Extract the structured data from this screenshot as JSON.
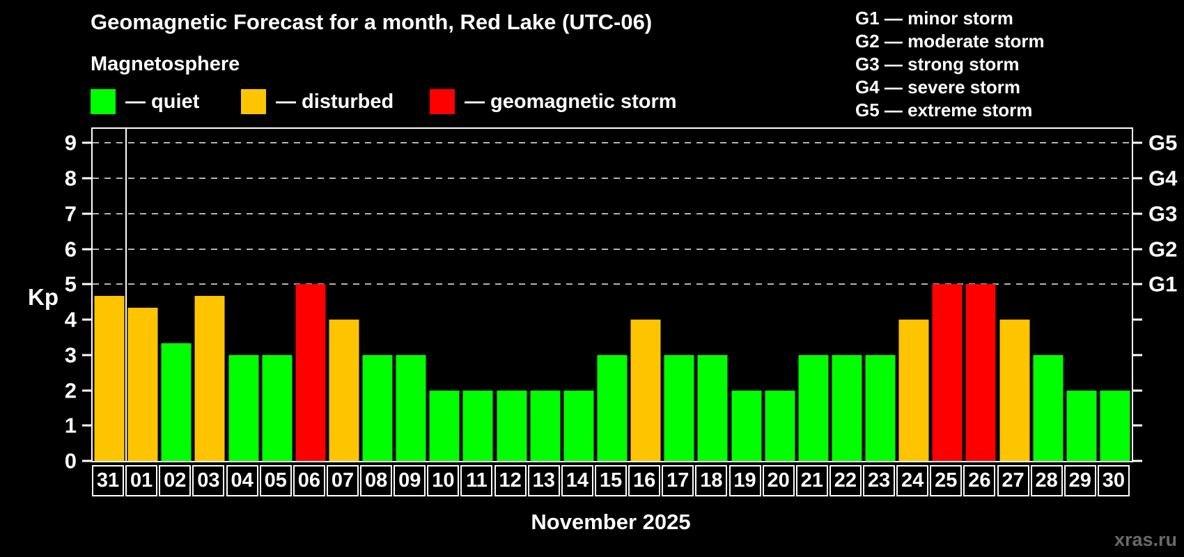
{
  "title": "Geomagnetic Forecast for a month, Red Lake (UTC-06)",
  "subtitle": "Magnetosphere",
  "legend": {
    "items": [
      {
        "key": "quiet",
        "label": "— quiet",
        "color": "#00ff00"
      },
      {
        "key": "disturbed",
        "label": "— disturbed",
        "color": "#ffc400"
      },
      {
        "key": "storm",
        "label": "— geomagnetic storm",
        "color": "#ff0000"
      }
    ]
  },
  "g_legend": [
    "G1 — minor storm",
    "G2 — moderate storm",
    "G3 — strong storm",
    "G4 — severe storm",
    "G5 — extreme storm"
  ],
  "watermark": "xras.ru",
  "chart_data": {
    "type": "bar",
    "title": "Geomagnetic Forecast for a month, Red Lake (UTC-06)",
    "xlabel": "November 2025",
    "ylabel": "Kp",
    "ylim": [
      0,
      9.4
    ],
    "y_ticks": [
      0,
      1,
      2,
      3,
      4,
      5,
      6,
      7,
      8,
      9
    ],
    "gridlines_at": [
      5,
      6,
      7,
      8,
      9
    ],
    "grid_style": "dashed",
    "legend_position": "top-left",
    "right_axis_labels": [
      {
        "level": 5,
        "label": "G1"
      },
      {
        "level": 6,
        "label": "G2"
      },
      {
        "level": 7,
        "label": "G3"
      },
      {
        "level": 8,
        "label": "G4"
      },
      {
        "level": 9,
        "label": "G5"
      }
    ],
    "colors": {
      "quiet": "#00ff00",
      "disturbed": "#ffc400",
      "storm": "#ff0000"
    },
    "separator_after_index": 0,
    "days": [
      {
        "label": "31",
        "value": 4.67,
        "status": "disturbed"
      },
      {
        "label": "01",
        "value": 4.33,
        "status": "disturbed"
      },
      {
        "label": "02",
        "value": 3.33,
        "status": "quiet"
      },
      {
        "label": "03",
        "value": 4.67,
        "status": "disturbed"
      },
      {
        "label": "04",
        "value": 3,
        "status": "quiet"
      },
      {
        "label": "05",
        "value": 3,
        "status": "quiet"
      },
      {
        "label": "06",
        "value": 5,
        "status": "storm"
      },
      {
        "label": "07",
        "value": 4,
        "status": "disturbed"
      },
      {
        "label": "08",
        "value": 3,
        "status": "quiet"
      },
      {
        "label": "09",
        "value": 3,
        "status": "quiet"
      },
      {
        "label": "10",
        "value": 2,
        "status": "quiet"
      },
      {
        "label": "11",
        "value": 2,
        "status": "quiet"
      },
      {
        "label": "12",
        "value": 2,
        "status": "quiet"
      },
      {
        "label": "13",
        "value": 2,
        "status": "quiet"
      },
      {
        "label": "14",
        "value": 2,
        "status": "quiet"
      },
      {
        "label": "15",
        "value": 3,
        "status": "quiet"
      },
      {
        "label": "16",
        "value": 4,
        "status": "disturbed"
      },
      {
        "label": "17",
        "value": 3,
        "status": "quiet"
      },
      {
        "label": "18",
        "value": 3,
        "status": "quiet"
      },
      {
        "label": "19",
        "value": 2,
        "status": "quiet"
      },
      {
        "label": "20",
        "value": 2,
        "status": "quiet"
      },
      {
        "label": "21",
        "value": 3,
        "status": "quiet"
      },
      {
        "label": "22",
        "value": 3,
        "status": "quiet"
      },
      {
        "label": "23",
        "value": 3,
        "status": "quiet"
      },
      {
        "label": "24",
        "value": 4,
        "status": "disturbed"
      },
      {
        "label": "25",
        "value": 5,
        "status": "storm"
      },
      {
        "label": "26",
        "value": 5,
        "status": "storm"
      },
      {
        "label": "27",
        "value": 4,
        "status": "disturbed"
      },
      {
        "label": "28",
        "value": 3,
        "status": "quiet"
      },
      {
        "label": "29",
        "value": 2,
        "status": "quiet"
      },
      {
        "label": "30",
        "value": 2,
        "status": "quiet"
      }
    ]
  }
}
